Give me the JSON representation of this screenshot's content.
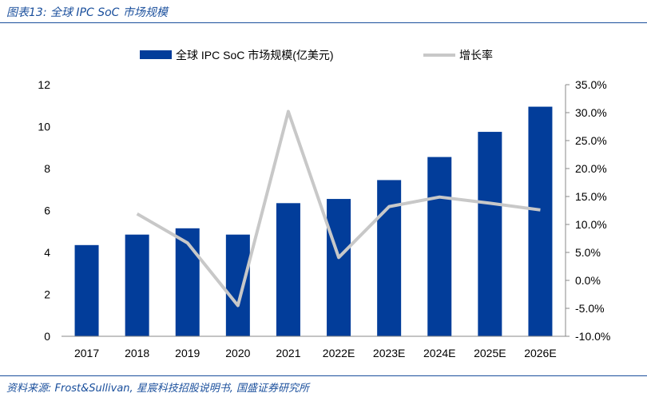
{
  "figure_title": "图表13:  全球 IPC SoC 市场规模",
  "source_text": "资料来源: Frost&Sullivan, 星宸科技招股说明书, 国盛证券研究所",
  "colors": {
    "bar": "#023d9a",
    "line": "#c8c8c8",
    "title": "#1a4f9c",
    "axis": "#888888"
  },
  "chart_data": {
    "type": "bar",
    "categories": [
      "2017",
      "2018",
      "2019",
      "2020",
      "2021",
      "2022E",
      "2023E",
      "2024E",
      "2025E",
      "2026E"
    ],
    "series": [
      {
        "name": "全球 IPC SoC 市场规模(亿美元)",
        "type": "bar",
        "axis": "left",
        "values": [
          4.35,
          4.85,
          5.15,
          4.85,
          6.35,
          6.55,
          7.45,
          8.55,
          9.75,
          10.95
        ]
      },
      {
        "name": "增长率",
        "type": "line",
        "axis": "right",
        "values": [
          null,
          11.9,
          6.7,
          -4.5,
          30.2,
          4.1,
          13.2,
          14.9,
          13.8,
          12.6
        ]
      }
    ],
    "left_axis": {
      "min": 0,
      "max": 12,
      "ticks": [
        "0",
        "2",
        "4",
        "6",
        "8",
        "10",
        "12"
      ]
    },
    "right_axis": {
      "min": -10,
      "max": 35,
      "ticks": [
        "-10.0%",
        "-5.0%",
        "0.0%",
        "5.0%",
        "10.0%",
        "15.0%",
        "20.0%",
        "25.0%",
        "30.0%",
        "35.0%"
      ]
    },
    "legend": {
      "position": "top",
      "bar_label": "全球 IPC SoC 市场规模(亿美元)",
      "line_label": "增长率"
    },
    "grid": false
  }
}
